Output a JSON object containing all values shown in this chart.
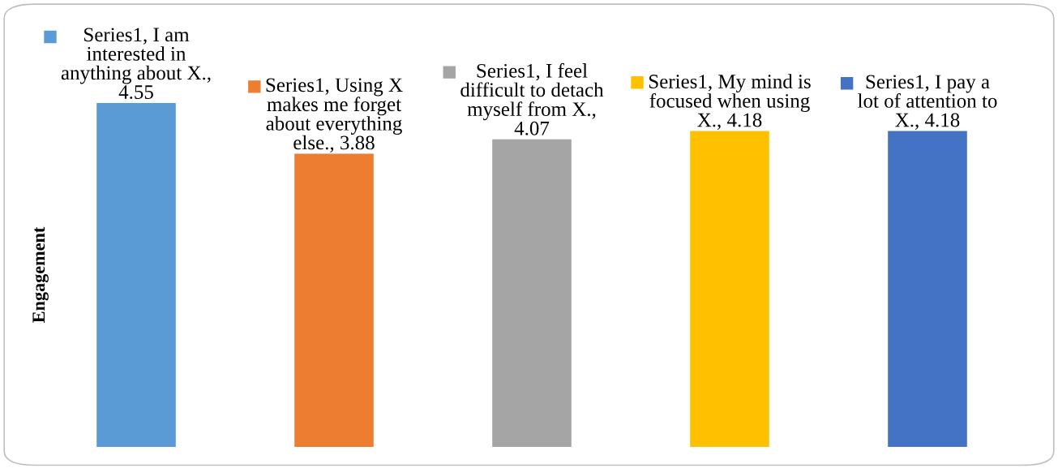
{
  "chart_data": {
    "type": "bar",
    "ylabel": "Engagement",
    "categories": [
      null,
      null,
      null,
      null,
      null
    ],
    "values": [
      4.55,
      3.88,
      4.07,
      4.18,
      4.18
    ],
    "colors": [
      "#5b9bd5",
      "#ed7d31",
      "#a5a5a5",
      "#ffc000",
      "#4472c4"
    ],
    "value_labels": [
      "Series1, I am interested in anything about X., 4.55",
      "Series1, Using X makes me forget about everything else., 3.88",
      "Series1, I feel difficult to detach myself from X., 4.07",
      "Series1, My mind is focused when using X., 4.18",
      "Series1, I pay a lot of attention to X., 4.18"
    ],
    "tick_labels": false,
    "grid": false
  }
}
